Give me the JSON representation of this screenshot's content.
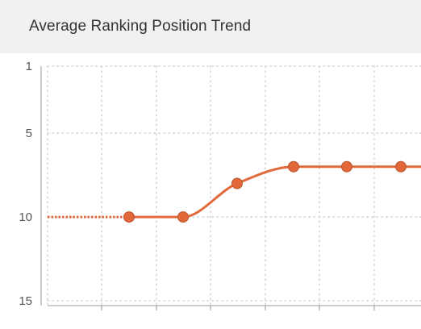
{
  "header": {
    "title": "Average Ranking Position Trend"
  },
  "chart_data": {
    "type": "line",
    "title": "Average Ranking Position Trend",
    "xlabel": "",
    "ylabel": "",
    "y_inverted": true,
    "ylim": [
      1,
      15
    ],
    "yticks": [
      1,
      5,
      10,
      15
    ],
    "grid": true,
    "legend": "none",
    "series": [
      {
        "values": [
          null,
          10,
          10,
          8,
          7,
          7,
          7,
          7
        ],
        "leading_dotted_value": 10,
        "color": "#e06a3b"
      }
    ],
    "colors": {
      "line": "#e06a3b",
      "marker": "#e2683a",
      "marker_stroke": "#b9542c",
      "grid": "#d4d4d4",
      "axis": "#999999",
      "header_bg": "#f1f1f1",
      "title_text": "#333333"
    }
  }
}
